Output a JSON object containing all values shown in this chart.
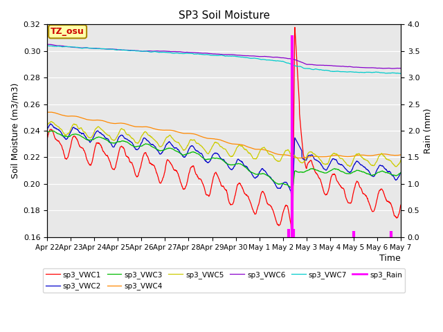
{
  "title": "SP3 Soil Moisture",
  "xlabel": "Time",
  "ylabel_left": "Soil Moisture (m3/m3)",
  "ylabel_right": "Rain (mm)",
  "ylim_left": [
    0.16,
    0.32
  ],
  "ylim_right": [
    0.0,
    4.0
  ],
  "xtick_labels": [
    "Apr 22",
    "Apr 23",
    "Apr 24",
    "Apr 25",
    "Apr 26",
    "Apr 27",
    "Apr 28",
    "Apr 29",
    "Apr 30",
    "May 1",
    "May 2",
    "May 3",
    "May 4",
    "May 5",
    "May 6",
    "May 7"
  ],
  "xtick_positions": [
    0,
    1,
    2,
    3,
    4,
    5,
    6,
    7,
    8,
    9,
    10,
    11,
    12,
    13,
    14,
    15
  ],
  "colors": {
    "VWC1": "#ff0000",
    "VWC2": "#0000cc",
    "VWC3": "#00bb00",
    "VWC4": "#ff8800",
    "VWC5": "#cccc00",
    "VWC6": "#8800cc",
    "VWC7": "#00cccc",
    "Rain": "#ff00ff"
  },
  "annotation_text": "TZ_osu",
  "annotation_box_color": "#ffffaa",
  "annotation_text_color": "#cc0000",
  "background_color": "#e8e8e8",
  "fig_background": "#ffffff",
  "rain_times": [
    10.25,
    10.4,
    10.45,
    13.0,
    14.6
  ],
  "rain_vals_mm": [
    0.15,
    3.8,
    0.15,
    0.12,
    0.12
  ]
}
